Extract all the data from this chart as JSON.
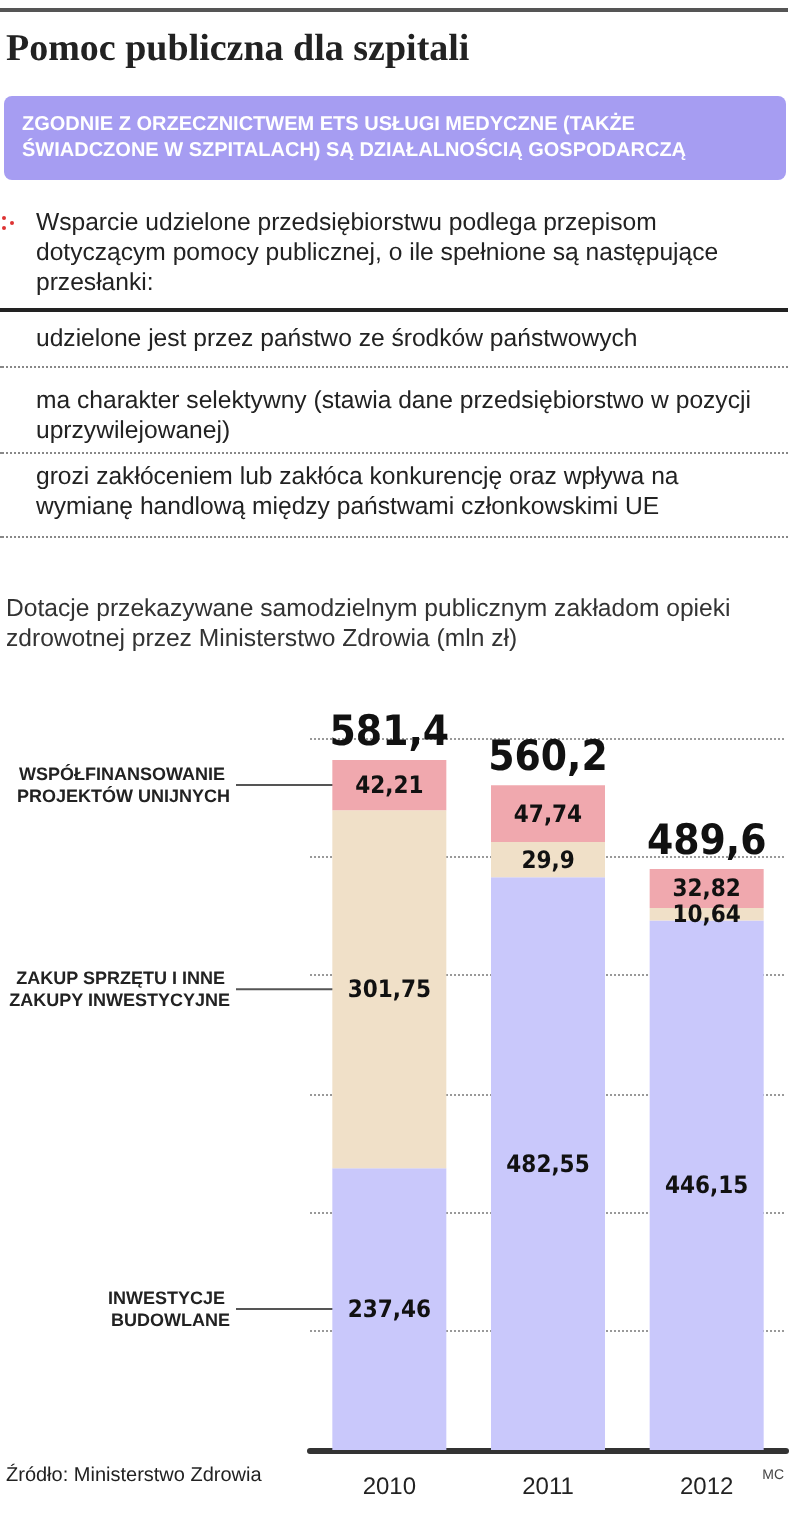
{
  "chart_data": {
    "type": "bar",
    "stacked": true,
    "title": "Pomoc publiczna dla szpitali",
    "subtitle": "ZGODNIE Z ORZECZNICTWEM ETS USŁUGI MEDYCZNE (TAKŻE ŚWIADCZONE W SZPITALACH) SĄ DZIAŁALNOŚCIĄ GOSPODARCZĄ",
    "annotations": [
      "Wsparcie udzielone przedsiębiorstwu podlega przepisom dotyczącym pomocy publicznej, o ile spełnione są następujące przesłanki:",
      "udzielone jest przez państwo ze środków państwowych",
      "ma charakter selektywny (stawia dane przedsiębiorstwo w pozycji uprzywilejowanej)",
      "grozi zakłóceniem lub zakłóca konkurencję oraz wpływa na wymianę handlową między państwami członkowskimi UE",
      "Dotacje przekazywane samodzielnym publicznym zakładom opieki zdrowotnej przez Ministerstwo Zdrowia (mln zł)",
      "Źródło: Ministerstwo Zdrowia",
      "MC"
    ],
    "categories": [
      "2010",
      "2011",
      "2012"
    ],
    "series": [
      {
        "name": "INWESTYCJE BUDOWLANE",
        "color": "#c9c8fb",
        "values": [
          237.46,
          482.55,
          446.15
        ],
        "value_labels": [
          "237,46",
          "482,55",
          "446,15"
        ]
      },
      {
        "name": "ZAKUP SPRZĘTU I INNE ZAKUPY INWESTYCYJNE",
        "color": "#f0e0c8",
        "values": [
          301.75,
          29.9,
          10.64
        ],
        "value_labels": [
          "301,75",
          "29,9",
          "10,64"
        ]
      },
      {
        "name": "WSPÓŁFINANSOWANIE PROJEKTÓW UNIJNYCH",
        "color": "#f0a8ae",
        "values": [
          42.21,
          47.74,
          32.82
        ],
        "value_labels": [
          "42,21",
          "47,74",
          "32,82"
        ]
      }
    ],
    "totals": [
      "581,4",
      "560,2",
      "489,6"
    ],
    "ylim": [
      0,
      600
    ],
    "yticks": [
      {
        "value": 0,
        "label": null
      },
      {
        "value": 100,
        "label": null
      },
      {
        "value": 200,
        "label": null
      },
      {
        "value": 300,
        "label": null
      },
      {
        "value": 400,
        "label": null
      },
      {
        "value": 500,
        "label": null
      },
      {
        "value": 600,
        "label": null
      }
    ],
    "tick_labels": "x",
    "grid": "y",
    "legend": false
  }
}
